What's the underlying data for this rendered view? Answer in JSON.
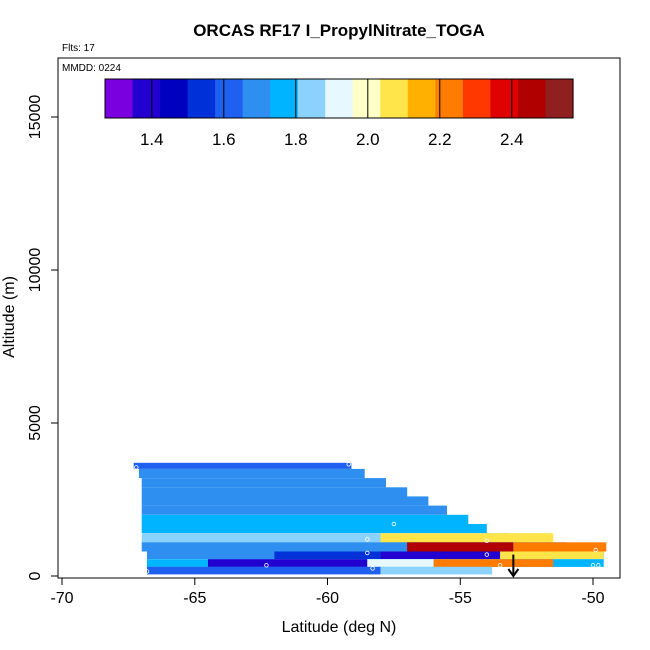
{
  "chart_data": {
    "type": "heatmap",
    "title": "ORCAS RF17 I_PropylNitrate_TOGA",
    "flights_label": "Flts: 17",
    "date_label": "MMDD: 0224",
    "xlabel": "Latitude (deg N)",
    "ylabel": "Altitude (m)",
    "xlim": [
      -70,
      -49
    ],
    "ylim": [
      0,
      16500
    ],
    "x_ticks": [
      -70,
      -65,
      -60,
      -55,
      -50
    ],
    "y_ticks": [
      0,
      5000,
      10000,
      15000
    ],
    "colorbar": {
      "range": [
        1.27,
        2.57
      ],
      "ticks": [
        1.4,
        1.6,
        1.8,
        2.0,
        2.2,
        2.4
      ],
      "colors": [
        "#7b00e0",
        "#2200d0",
        "#0000c0",
        "#0030d8",
        "#2060f0",
        "#2f8ff0",
        "#00b4ff",
        "#8cd2ff",
        "#e8f8ff",
        "#ffffc8",
        "#ffe44a",
        "#ffb000",
        "#ff7c00",
        "#ff3800",
        "#e00000",
        "#b00000",
        "#902020"
      ]
    },
    "cells": [
      {
        "x0": -67.3,
        "x1": -59.1,
        "y0": 3500,
        "y1": 3700,
        "v": 1.65
      },
      {
        "x0": -67.1,
        "x1": -58.6,
        "y0": 3200,
        "y1": 3500,
        "v": 1.66
      },
      {
        "x0": -67.0,
        "x1": -57.8,
        "y0": 2900,
        "y1": 3200,
        "v": 1.67
      },
      {
        "x0": -67.0,
        "x1": -57.0,
        "y0": 2600,
        "y1": 2900,
        "v": 1.68
      },
      {
        "x0": -67.0,
        "x1": -56.2,
        "y0": 2300,
        "y1": 2600,
        "v": 1.69
      },
      {
        "x0": -67.0,
        "x1": -55.5,
        "y0": 2000,
        "y1": 2300,
        "v": 1.72
      },
      {
        "x0": -67.0,
        "x1": -54.7,
        "y0": 1700,
        "y1": 2000,
        "v": 1.75
      },
      {
        "x0": -67.0,
        "x1": -54.0,
        "y0": 1400,
        "y1": 1700,
        "v": 1.8
      },
      {
        "x0": -67.0,
        "x1": -53.2,
        "y0": 1100,
        "y1": 1400,
        "v": 1.85
      },
      {
        "x0": -58.0,
        "x1": -51.5,
        "y0": 1100,
        "y1": 1400,
        "v": 2.05
      },
      {
        "x0": -67.0,
        "x1": -51.0,
        "y0": 800,
        "y1": 1100,
        "v": 1.7
      },
      {
        "x0": -57.0,
        "x1": -53.0,
        "y0": 800,
        "y1": 1100,
        "v": 2.45
      },
      {
        "x0": -53.0,
        "x1": -49.5,
        "y0": 800,
        "y1": 1100,
        "v": 2.2
      },
      {
        "x0": -66.8,
        "x1": -49.6,
        "y0": 550,
        "y1": 800,
        "v": 1.72
      },
      {
        "x0": -62.0,
        "x1": -58.0,
        "y0": 550,
        "y1": 800,
        "v": 1.55
      },
      {
        "x0": -58.0,
        "x1": -53.5,
        "y0": 550,
        "y1": 800,
        "v": 1.35
      },
      {
        "x0": -53.5,
        "x1": -49.6,
        "y0": 550,
        "y1": 800,
        "v": 2.1
      },
      {
        "x0": -66.8,
        "x1": -49.6,
        "y0": 300,
        "y1": 550,
        "v": 1.75
      },
      {
        "x0": -64.5,
        "x1": -58.5,
        "y0": 300,
        "y1": 550,
        "v": 1.42
      },
      {
        "x0": -58.5,
        "x1": -56.0,
        "y0": 300,
        "y1": 550,
        "v": 1.95
      },
      {
        "x0": -56.0,
        "x1": -51.5,
        "y0": 300,
        "y1": 550,
        "v": 2.25
      },
      {
        "x0": -66.8,
        "x1": -58.0,
        "y0": 50,
        "y1": 300,
        "v": 1.6
      },
      {
        "x0": -58.0,
        "x1": -53.8,
        "y0": 50,
        "y1": 300,
        "v": 1.82
      }
    ],
    "samples": [
      {
        "x": -67.2,
        "y": 3550
      },
      {
        "x": -59.2,
        "y": 3650
      },
      {
        "x": -57.5,
        "y": 1700
      },
      {
        "x": -58.5,
        "y": 1200
      },
      {
        "x": -58.5,
        "y": 750
      },
      {
        "x": -54.0,
        "y": 1150
      },
      {
        "x": -54.0,
        "y": 700
      },
      {
        "x": -53.5,
        "y": 350
      },
      {
        "x": -62.3,
        "y": 350
      },
      {
        "x": -58.3,
        "y": 250
      },
      {
        "x": -66.8,
        "y": 150
      },
      {
        "x": -50.0,
        "y": 350
      },
      {
        "x": -49.8,
        "y": 350
      },
      {
        "x": -49.9,
        "y": 850
      }
    ],
    "arrow": {
      "x": -53.0,
      "y_top": 700,
      "y_bottom": 0
    }
  }
}
